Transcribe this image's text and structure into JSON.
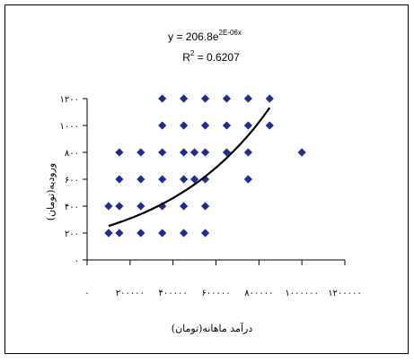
{
  "chart_data": {
    "type": "scatter",
    "trendline": {
      "kind": "exponential",
      "a": 206.8,
      "b": 2e-06,
      "equation_prefix": "y = 206.8e",
      "equation_exponent": "2E-06x",
      "r2_prefix": "R",
      "r2_exponent": "2",
      "r2_value": " = 0.6207"
    },
    "xlabel": "درآمد ماهانه(تومان)",
    "ylabel": "ورودیه(تومان)",
    "xlim": [
      0,
      1200000
    ],
    "ylim": [
      0,
      1200
    ],
    "x_ticks": [
      0,
      200000,
      400000,
      600000,
      800000,
      1000000,
      1200000
    ],
    "y_ticks": [
      0,
      200,
      400,
      600,
      800,
      1000,
      1200
    ],
    "x_tick_labels": [
      "۰",
      "۲۰۰۰۰۰",
      "۴۰۰۰۰۰",
      "۶۰۰۰۰۰",
      "۸۰۰۰۰۰",
      "۱۰۰۰۰۰۰",
      "۱۲۰۰۰۰۰"
    ],
    "y_tick_labels": [
      "۰",
      "۲۰۰",
      "۴۰۰",
      "۶۰۰",
      "۸۰۰",
      "۱۰۰۰",
      "۱۲۰۰"
    ],
    "series": [
      {
        "marker": "diamond",
        "color": "#1f2f8f",
        "points": [
          [
            100000,
            200
          ],
          [
            100000,
            400
          ],
          [
            100000,
            200
          ],
          [
            150000,
            200
          ],
          [
            150000,
            400
          ],
          [
            150000,
            600
          ],
          [
            150000,
            800
          ],
          [
            250000,
            200
          ],
          [
            250000,
            400
          ],
          [
            250000,
            600
          ],
          [
            250000,
            800
          ],
          [
            350000,
            200
          ],
          [
            350000,
            400
          ],
          [
            350000,
            600
          ],
          [
            350000,
            800
          ],
          [
            350000,
            1000
          ],
          [
            350000,
            1200
          ],
          [
            450000,
            200
          ],
          [
            450000,
            400
          ],
          [
            450000,
            600
          ],
          [
            450000,
            800
          ],
          [
            450000,
            1000
          ],
          [
            450000,
            1200
          ],
          [
            500000,
            600
          ],
          [
            500000,
            800
          ],
          [
            550000,
            200
          ],
          [
            550000,
            400
          ],
          [
            550000,
            600
          ],
          [
            550000,
            800
          ],
          [
            550000,
            1000
          ],
          [
            550000,
            1200
          ],
          [
            650000,
            800
          ],
          [
            650000,
            1000
          ],
          [
            650000,
            1200
          ],
          [
            750000,
            600
          ],
          [
            750000,
            800
          ],
          [
            750000,
            1000
          ],
          [
            750000,
            1200
          ],
          [
            850000,
            1000
          ],
          [
            850000,
            1200
          ],
          [
            1000000,
            800
          ]
        ]
      }
    ],
    "grid": false,
    "legend": "none"
  }
}
